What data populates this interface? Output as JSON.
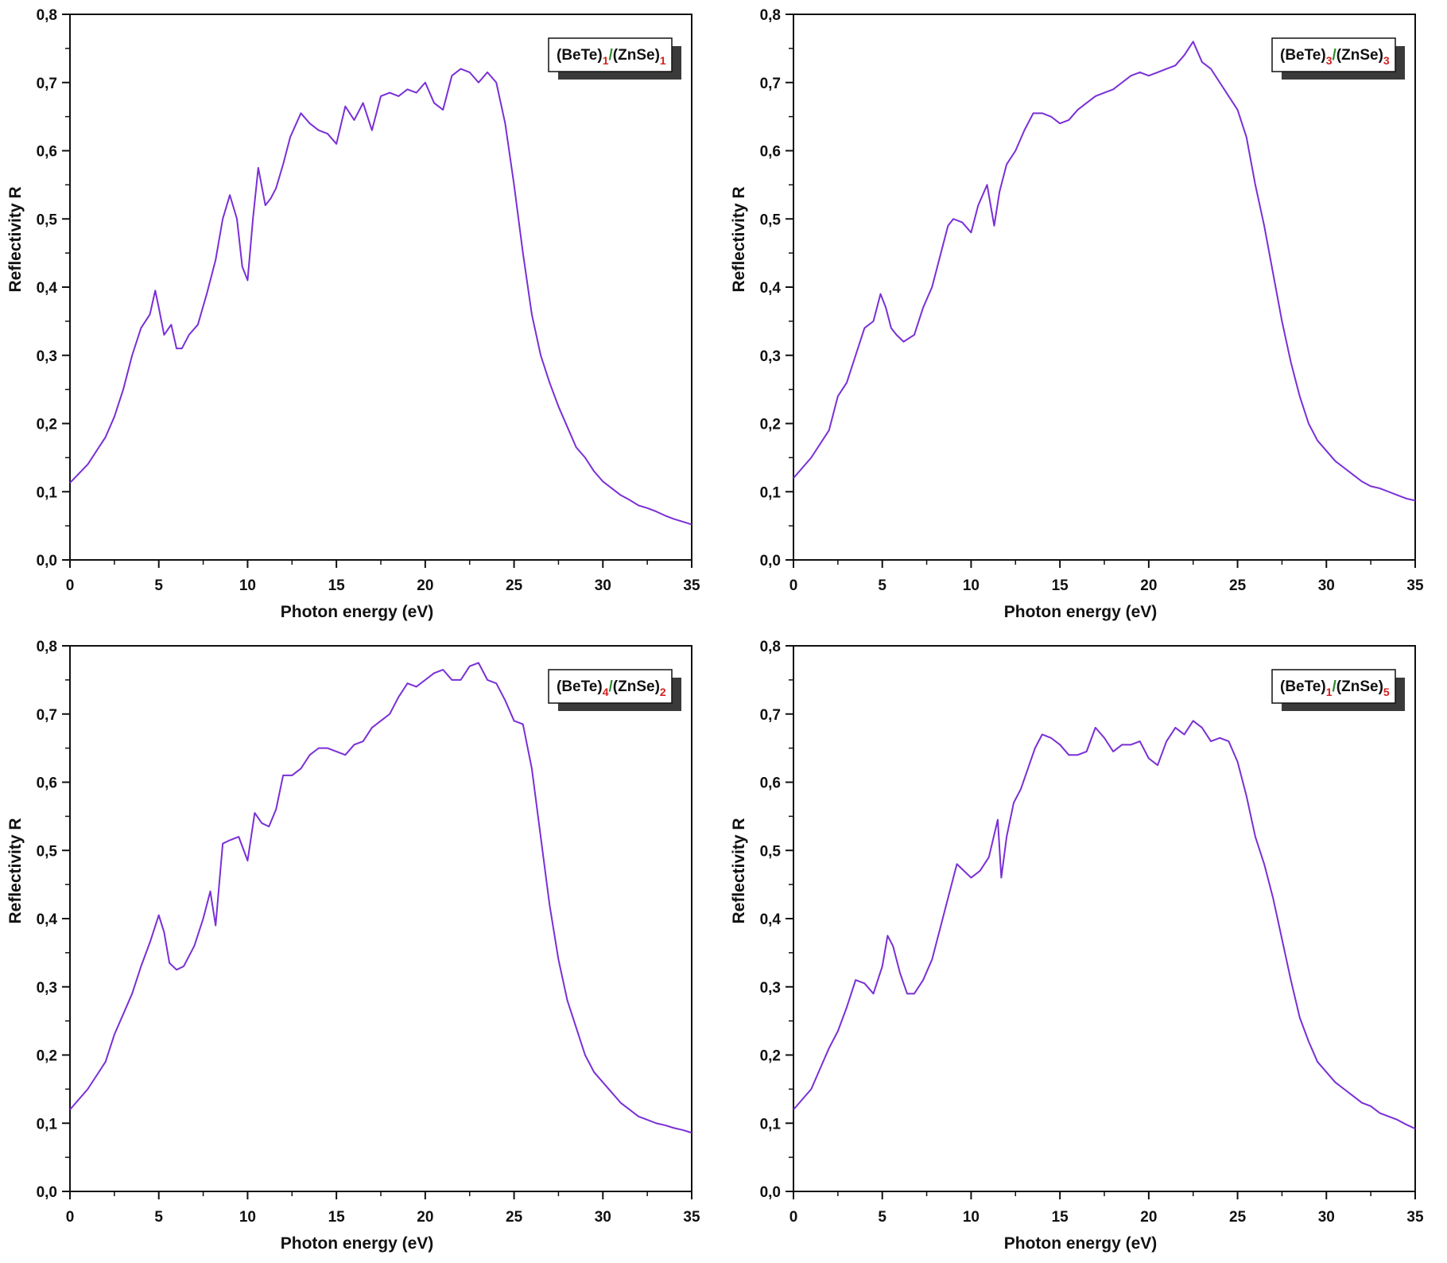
{
  "chart_data": [
    {
      "type": "line",
      "xlabel": "Photon energy (eV)",
      "ylabel": "Reflectivity R",
      "xlim": [
        0,
        35
      ],
      "ylim": [
        0.0,
        0.8
      ],
      "xticks": [
        "0",
        "5",
        "10",
        "15",
        "20",
        "25",
        "30",
        "35"
      ],
      "yticks": [
        "0,0",
        "0,1",
        "0,2",
        "0,3",
        "0,4",
        "0,5",
        "0,6",
        "0,7",
        "0,8"
      ],
      "grid": false,
      "legend_position": "top-right",
      "legend": {
        "a": "(BeTe)",
        "m": "1",
        "b": "/(ZnSe)",
        "n": "1"
      },
      "line_color": "#7a2fd6",
      "series": [
        {
          "x": [
            0,
            1,
            2,
            2.5,
            3,
            3.5,
            4,
            4.5,
            4.8,
            5.0,
            5.3,
            5.7,
            6.0,
            6.3,
            6.7,
            7.2,
            7.7,
            8.2,
            8.6,
            9.0,
            9.4,
            9.7,
            10.0,
            10.3,
            10.6,
            11.0,
            11.3,
            11.6,
            12.0,
            12.4,
            13.0,
            13.5,
            14.0,
            14.5,
            15.0,
            15.5,
            16.0,
            16.5,
            17.0,
            17.5,
            18.0,
            18.5,
            19.0,
            19.5,
            20.0,
            20.5,
            21.0,
            21.5,
            22.0,
            22.5,
            23.0,
            23.5,
            24.0,
            24.5,
            25.0,
            25.5,
            26.0,
            26.5,
            27.0,
            27.5,
            28.0,
            28.5,
            29.0,
            29.5,
            30.0,
            30.5,
            31.0,
            31.5,
            32.0,
            32.5,
            33.0,
            33.5,
            34.0,
            34.5,
            35.0
          ],
          "y": [
            0.113,
            0.14,
            0.18,
            0.21,
            0.25,
            0.3,
            0.34,
            0.36,
            0.395,
            0.37,
            0.33,
            0.345,
            0.31,
            0.31,
            0.33,
            0.345,
            0.39,
            0.44,
            0.5,
            0.535,
            0.5,
            0.43,
            0.41,
            0.5,
            0.575,
            0.52,
            0.53,
            0.545,
            0.58,
            0.62,
            0.655,
            0.64,
            0.63,
            0.625,
            0.61,
            0.665,
            0.645,
            0.67,
            0.63,
            0.68,
            0.685,
            0.68,
            0.69,
            0.685,
            0.7,
            0.67,
            0.66,
            0.71,
            0.72,
            0.715,
            0.7,
            0.715,
            0.7,
            0.64,
            0.55,
            0.45,
            0.36,
            0.3,
            0.26,
            0.225,
            0.195,
            0.165,
            0.15,
            0.13,
            0.115,
            0.105,
            0.095,
            0.088,
            0.08,
            0.076,
            0.071,
            0.065,
            0.06,
            0.056,
            0.052
          ]
        }
      ]
    },
    {
      "type": "line",
      "xlabel": "Photon energy (eV)",
      "ylabel": "Reflectivity R",
      "xlim": [
        0,
        35
      ],
      "ylim": [
        0.0,
        0.8
      ],
      "xticks": [
        "0",
        "5",
        "10",
        "15",
        "20",
        "25",
        "30",
        "35"
      ],
      "yticks": [
        "0,0",
        "0,1",
        "0,2",
        "0,3",
        "0,4",
        "0,5",
        "0,6",
        "0,7",
        "0,8"
      ],
      "grid": false,
      "legend_position": "top-right",
      "legend": {
        "a": "(BeTe)",
        "m": "3",
        "b": "/(ZnSe)",
        "n": "3"
      },
      "line_color": "#7a2fd6",
      "series": [
        {
          "x": [
            0,
            1,
            2,
            2.5,
            3,
            3.5,
            4,
            4.5,
            4.9,
            5.2,
            5.5,
            5.8,
            6.2,
            6.8,
            7.3,
            7.8,
            8.3,
            8.7,
            9.0,
            9.5,
            10.0,
            10.4,
            10.9,
            11.3,
            11.6,
            12.0,
            12.5,
            13.0,
            13.5,
            14.0,
            14.5,
            15.0,
            15.5,
            16.0,
            16.5,
            17.0,
            17.5,
            18.0,
            18.5,
            19.0,
            19.5,
            20.0,
            20.5,
            21.0,
            21.5,
            22.0,
            22.5,
            23.0,
            23.5,
            24.0,
            24.5,
            25.0,
            25.5,
            26.0,
            26.5,
            27.0,
            27.5,
            28.0,
            28.5,
            29.0,
            29.5,
            30.0,
            30.5,
            31.0,
            31.5,
            32.0,
            32.5,
            33.0,
            33.5,
            34.0,
            34.5,
            35.0
          ],
          "y": [
            0.12,
            0.15,
            0.19,
            0.24,
            0.26,
            0.3,
            0.34,
            0.35,
            0.39,
            0.37,
            0.34,
            0.33,
            0.32,
            0.33,
            0.37,
            0.4,
            0.45,
            0.49,
            0.5,
            0.495,
            0.48,
            0.52,
            0.55,
            0.49,
            0.54,
            0.58,
            0.6,
            0.63,
            0.655,
            0.655,
            0.65,
            0.64,
            0.645,
            0.66,
            0.67,
            0.68,
            0.685,
            0.69,
            0.7,
            0.71,
            0.715,
            0.71,
            0.715,
            0.72,
            0.725,
            0.74,
            0.76,
            0.73,
            0.72,
            0.7,
            0.68,
            0.66,
            0.62,
            0.55,
            0.49,
            0.42,
            0.35,
            0.29,
            0.24,
            0.2,
            0.175,
            0.16,
            0.145,
            0.135,
            0.125,
            0.115,
            0.108,
            0.105,
            0.1,
            0.095,
            0.09,
            0.087
          ]
        }
      ]
    },
    {
      "type": "line",
      "xlabel": "Photon energy (eV)",
      "ylabel": "Reflectivity R",
      "xlim": [
        0,
        35
      ],
      "ylim": [
        0.0,
        0.8
      ],
      "xticks": [
        "0",
        "5",
        "10",
        "15",
        "20",
        "25",
        "30",
        "35"
      ],
      "yticks": [
        "0,0",
        "0,1",
        "0,2",
        "0,3",
        "0,4",
        "0,5",
        "0,6",
        "0,7",
        "0,8"
      ],
      "grid": false,
      "legend_position": "top-right",
      "legend": {
        "a": "(BeTe)",
        "m": "4",
        "b": "/(ZnSe)",
        "n": "2"
      },
      "line_color": "#7a2fd6",
      "series": [
        {
          "x": [
            0,
            1,
            2,
            2.5,
            3,
            3.5,
            4,
            4.5,
            5.0,
            5.3,
            5.6,
            6.0,
            6.4,
            7.0,
            7.5,
            7.9,
            8.2,
            8.6,
            9.0,
            9.5,
            10.0,
            10.4,
            10.8,
            11.2,
            11.6,
            12.0,
            12.5,
            13.0,
            13.5,
            14.0,
            14.5,
            15.0,
            15.5,
            16.0,
            16.5,
            17.0,
            17.5,
            18.0,
            18.5,
            19.0,
            19.5,
            20.0,
            20.5,
            21.0,
            21.5,
            22.0,
            22.5,
            23.0,
            23.5,
            24.0,
            24.5,
            25.0,
            25.5,
            26.0,
            26.5,
            27.0,
            27.5,
            28.0,
            28.5,
            29.0,
            29.5,
            30.0,
            30.5,
            31.0,
            31.5,
            32.0,
            32.5,
            33.0,
            33.5,
            34.0,
            34.5,
            35.0
          ],
          "y": [
            0.12,
            0.15,
            0.19,
            0.23,
            0.26,
            0.29,
            0.33,
            0.365,
            0.405,
            0.38,
            0.335,
            0.325,
            0.33,
            0.36,
            0.4,
            0.44,
            0.39,
            0.51,
            0.515,
            0.52,
            0.485,
            0.555,
            0.54,
            0.535,
            0.56,
            0.61,
            0.61,
            0.62,
            0.64,
            0.65,
            0.65,
            0.645,
            0.64,
            0.655,
            0.66,
            0.68,
            0.69,
            0.7,
            0.725,
            0.745,
            0.74,
            0.75,
            0.76,
            0.765,
            0.75,
            0.75,
            0.77,
            0.775,
            0.75,
            0.745,
            0.72,
            0.69,
            0.685,
            0.62,
            0.52,
            0.42,
            0.34,
            0.28,
            0.24,
            0.2,
            0.175,
            0.16,
            0.145,
            0.13,
            0.12,
            0.11,
            0.105,
            0.1,
            0.097,
            0.093,
            0.09,
            0.086
          ]
        }
      ]
    },
    {
      "type": "line",
      "xlabel": "Photon energy (eV)",
      "ylabel": "Reflectivity R",
      "xlim": [
        0,
        35
      ],
      "ylim": [
        0.0,
        0.8
      ],
      "xticks": [
        "0",
        "5",
        "10",
        "15",
        "20",
        "25",
        "30",
        "35"
      ],
      "yticks": [
        "0,0",
        "0,1",
        "0,2",
        "0,3",
        "0,4",
        "0,5",
        "0,6",
        "0,7",
        "0,8"
      ],
      "grid": false,
      "legend_position": "top-right",
      "legend": {
        "a": "(BeTe)",
        "m": "1",
        "b": "/(ZnSe)",
        "n": "5"
      },
      "line_color": "#7a2fd6",
      "series": [
        {
          "x": [
            0,
            1,
            1.5,
            2,
            2.5,
            3,
            3.5,
            4.0,
            4.5,
            5.0,
            5.3,
            5.6,
            6.0,
            6.4,
            6.8,
            7.3,
            7.8,
            8.3,
            8.7,
            9.2,
            9.6,
            10.0,
            10.5,
            11.0,
            11.5,
            11.7,
            12.0,
            12.4,
            12.8,
            13.2,
            13.6,
            14.0,
            14.5,
            15.0,
            15.5,
            16.0,
            16.5,
            17.0,
            17.5,
            18.0,
            18.5,
            19.0,
            19.5,
            20.0,
            20.5,
            21.0,
            21.5,
            22.0,
            22.5,
            23.0,
            23.5,
            24.0,
            24.5,
            25.0,
            25.5,
            26.0,
            26.5,
            27.0,
            27.5,
            28.0,
            28.5,
            29.0,
            29.5,
            30.0,
            30.5,
            31.0,
            31.5,
            32.0,
            32.5,
            33.0,
            33.5,
            34.0,
            34.5,
            35.0
          ],
          "y": [
            0.12,
            0.15,
            0.18,
            0.21,
            0.235,
            0.27,
            0.31,
            0.305,
            0.29,
            0.33,
            0.375,
            0.36,
            0.32,
            0.29,
            0.29,
            0.31,
            0.34,
            0.39,
            0.43,
            0.48,
            0.47,
            0.46,
            0.47,
            0.49,
            0.545,
            0.46,
            0.52,
            0.57,
            0.59,
            0.62,
            0.65,
            0.67,
            0.665,
            0.655,
            0.64,
            0.64,
            0.645,
            0.68,
            0.665,
            0.645,
            0.655,
            0.655,
            0.66,
            0.635,
            0.625,
            0.66,
            0.68,
            0.67,
            0.69,
            0.68,
            0.66,
            0.665,
            0.66,
            0.63,
            0.58,
            0.52,
            0.48,
            0.43,
            0.37,
            0.31,
            0.255,
            0.22,
            0.19,
            0.175,
            0.16,
            0.15,
            0.14,
            0.13,
            0.125,
            0.115,
            0.11,
            0.105,
            0.098,
            0.092
          ]
        }
      ]
    }
  ]
}
